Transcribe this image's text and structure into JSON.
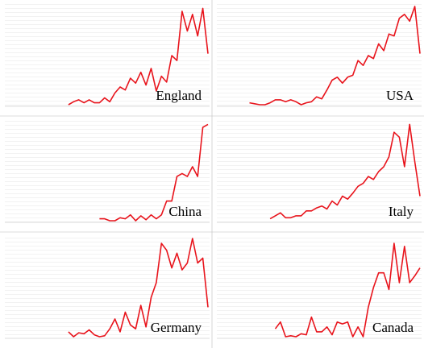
{
  "chart_data": [
    {
      "type": "line",
      "title": "England",
      "color": "#e8141c",
      "ylim": [
        0,
        100
      ],
      "values": [
        null,
        null,
        null,
        null,
        null,
        null,
        null,
        null,
        null,
        null,
        null,
        null,
        0,
        3,
        5,
        2,
        5,
        2,
        2,
        7,
        3,
        12,
        18,
        15,
        27,
        22,
        33,
        20,
        37,
        14,
        29,
        23,
        50,
        45,
        95,
        75,
        92,
        70,
        98,
        52
      ]
    },
    {
      "type": "line",
      "title": "USA",
      "color": "#e8141c",
      "ylim": [
        0,
        100
      ],
      "values": [
        null,
        null,
        null,
        null,
        null,
        null,
        2,
        1,
        0,
        0,
        2,
        5,
        5,
        3,
        5,
        3,
        0,
        2,
        3,
        8,
        6,
        15,
        25,
        28,
        22,
        28,
        30,
        45,
        40,
        50,
        47,
        62,
        55,
        72,
        70,
        88,
        92,
        85,
        100,
        52
      ]
    },
    {
      "type": "line",
      "title": "China",
      "color": "#e8141c",
      "ylim": [
        0,
        100
      ],
      "values": [
        null,
        null,
        null,
        null,
        null,
        null,
        null,
        null,
        null,
        null,
        null,
        null,
        null,
        null,
        null,
        null,
        null,
        null,
        2,
        2,
        0,
        0,
        3,
        2,
        6,
        0,
        5,
        1,
        6,
        2,
        6,
        20,
        20,
        45,
        48,
        45,
        55,
        45,
        95,
        98
      ]
    },
    {
      "type": "line",
      "title": "Italy",
      "color": "#e8141c",
      "ylim": [
        0,
        100
      ],
      "values": [
        null,
        null,
        null,
        null,
        null,
        null,
        null,
        null,
        null,
        null,
        2,
        5,
        8,
        3,
        3,
        5,
        5,
        10,
        10,
        13,
        15,
        12,
        20,
        16,
        25,
        22,
        28,
        35,
        38,
        45,
        42,
        50,
        55,
        65,
        90,
        85,
        55,
        98,
        60,
        25
      ]
    },
    {
      "type": "line",
      "title": "Germany",
      "color": "#e8141c",
      "ylim": [
        0,
        100
      ],
      "values": [
        null,
        null,
        null,
        null,
        null,
        null,
        null,
        null,
        null,
        null,
        null,
        null,
        5,
        0,
        4,
        3,
        7,
        2,
        0,
        1,
        8,
        18,
        5,
        25,
        12,
        8,
        32,
        10,
        40,
        55,
        95,
        88,
        70,
        85,
        68,
        75,
        100,
        75,
        80,
        30
      ]
    },
    {
      "type": "line",
      "title": "Canada",
      "color": "#e8141c",
      "ylim": [
        0,
        100
      ],
      "values": [
        null,
        null,
        null,
        null,
        null,
        null,
        null,
        null,
        null,
        null,
        null,
        8,
        15,
        0,
        1,
        0,
        3,
        2,
        20,
        5,
        5,
        10,
        2,
        15,
        13,
        15,
        0,
        10,
        0,
        30,
        50,
        65,
        65,
        48,
        95,
        55,
        92,
        55,
        62,
        70
      ]
    }
  ]
}
